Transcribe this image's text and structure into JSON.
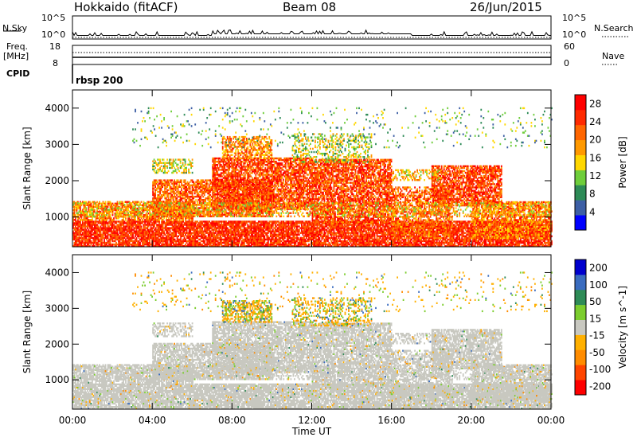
{
  "header": {
    "radar": "Hokkaido (fitACF)",
    "beam": "Beam 08",
    "date": "26/Jun/2015"
  },
  "summary_panel": {
    "nsky_label": "N.Sky",
    "nsky_ticks": [
      "10^5",
      "10^0"
    ],
    "nsearch_label": "N.Search",
    "nsearch_ticks": [
      "10^5",
      "10^0"
    ],
    "freq_label_1": "Freq.",
    "freq_label_2": "[MHz]",
    "freq_ticks": [
      "18",
      "8"
    ],
    "nave_label": "Nave",
    "nave_ticks": [
      "60",
      "0"
    ],
    "cpid_label": "CPID",
    "cpid_value": "rbsp 200"
  },
  "colors": {
    "power_scale": [
      "#0000ff",
      "#3d5fa5",
      "#2e8b57",
      "#6fce3b",
      "#ffd700",
      "#ff9900",
      "#ff6600",
      "#ff2a00",
      "#ff0000"
    ],
    "velocity_scale": [
      "#ff0000",
      "#ff4500",
      "#ff8c00",
      "#ffb000",
      "#c8c8c0",
      "#7ccd2e",
      "#2e8b57",
      "#3a6cbf",
      "#0000cd"
    ],
    "ground_scatter": "#c8c8c0"
  },
  "chart_data": [
    {
      "type": "heatmap",
      "title": "Power",
      "xlabel": "",
      "ylabel": "Slant Range [km]",
      "x_ticks": [
        "00:00",
        "04:00",
        "08:00",
        "12:00",
        "16:00",
        "20:00",
        "00:00"
      ],
      "y_ticks": [
        "1000",
        "2000",
        "3000",
        "4000"
      ],
      "xlim": [
        0,
        24
      ],
      "ylim": [
        180,
        4500
      ],
      "colorbar_label": "Power [dB]",
      "colorbar_ticks": [
        "4",
        "8",
        "12",
        "16",
        "20",
        "24",
        "28"
      ],
      "colorbar_range": [
        0,
        30
      ]
    },
    {
      "type": "heatmap",
      "title": "Velocity",
      "xlabel": "Time UT",
      "ylabel": "Slant Range [km]",
      "x_ticks": [
        "00:00",
        "04:00",
        "08:00",
        "12:00",
        "16:00",
        "20:00",
        "00:00"
      ],
      "y_ticks": [
        "1000",
        "2000",
        "3000",
        "4000"
      ],
      "xlim": [
        0,
        24
      ],
      "ylim": [
        180,
        4500
      ],
      "colorbar_label": "Velocity [m s^-1]",
      "colorbar_ticks": [
        "200",
        "100",
        "50",
        "15",
        "-15",
        "-50",
        "-100",
        "-200"
      ],
      "colorbar_range": [
        -250,
        250
      ]
    }
  ]
}
